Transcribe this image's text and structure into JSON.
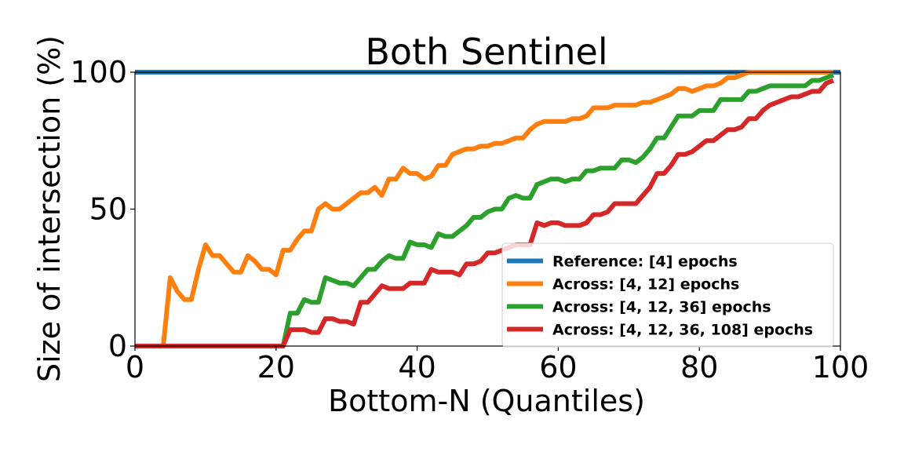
{
  "chart_data": {
    "type": "line",
    "title": "Both Sentinel",
    "xlabel": "Bottom-N (Quantiles)",
    "ylabel": "Size of intersection (%)",
    "xlim": [
      0,
      100
    ],
    "ylim": [
      0,
      100
    ],
    "xticks": [
      "0",
      "20",
      "40",
      "60",
      "80",
      "100"
    ],
    "yticks": [
      "0",
      "50",
      "100"
    ],
    "grid": false,
    "legend_position": "lower-right",
    "series": [
      {
        "name": "Reference: [4] epochs",
        "color": "#1f77b4",
        "x": [
          0,
          100
        ],
        "y": [
          100,
          100
        ]
      },
      {
        "name": "Across: [4, 12] epochs",
        "color": "#ff7f0e",
        "x": [
          0,
          1,
          2,
          3,
          4,
          5,
          6,
          7,
          8,
          9,
          10,
          11,
          12,
          13,
          14,
          15,
          16,
          17,
          18,
          19,
          20,
          21,
          22,
          23,
          24,
          25,
          26,
          27,
          28,
          29,
          30,
          31,
          32,
          33,
          34,
          35,
          36,
          37,
          38,
          39,
          40,
          41,
          42,
          43,
          44,
          45,
          46,
          47,
          48,
          49,
          50,
          51,
          52,
          53,
          54,
          55,
          56,
          57,
          58,
          59,
          60,
          61,
          62,
          63,
          64,
          65,
          66,
          67,
          68,
          69,
          70,
          71,
          72,
          73,
          74,
          75,
          76,
          77,
          78,
          79,
          80,
          81,
          82,
          83,
          84,
          85,
          86,
          87,
          88,
          89,
          90,
          91,
          92,
          93,
          94,
          95,
          96,
          97,
          98,
          99
        ],
        "y": [
          0,
          0,
          0,
          0,
          0,
          25,
          20,
          17,
          17,
          28,
          37,
          33,
          33,
          30,
          27,
          27,
          33,
          31,
          28,
          28,
          26,
          35,
          35,
          39,
          42,
          42,
          50,
          52,
          50,
          50,
          52,
          54,
          56,
          56,
          58,
          55,
          61,
          61,
          65,
          63,
          63,
          61,
          62,
          66,
          66,
          70,
          71,
          72,
          72,
          73,
          73,
          74,
          74,
          75,
          76,
          76,
          79,
          81,
          82,
          82,
          82,
          82,
          83,
          83,
          84,
          87,
          87,
          87,
          88,
          88,
          88,
          88,
          89,
          89,
          90,
          91,
          92,
          94,
          94,
          93,
          94,
          95,
          95,
          96,
          98,
          98,
          99,
          100,
          100,
          100,
          100,
          100,
          100,
          100,
          100,
          100,
          100,
          100,
          100,
          100
        ]
      },
      {
        "name": "Across: [4, 12, 36] epochs",
        "color": "#2ca02c",
        "x": [
          0,
          1,
          2,
          3,
          4,
          5,
          6,
          7,
          8,
          9,
          10,
          11,
          12,
          13,
          14,
          15,
          16,
          17,
          18,
          19,
          20,
          21,
          22,
          23,
          24,
          25,
          26,
          27,
          28,
          29,
          30,
          31,
          32,
          33,
          34,
          35,
          36,
          37,
          38,
          39,
          40,
          41,
          42,
          43,
          44,
          45,
          46,
          47,
          48,
          49,
          50,
          51,
          52,
          53,
          54,
          55,
          56,
          57,
          58,
          59,
          60,
          61,
          62,
          63,
          64,
          65,
          66,
          67,
          68,
          69,
          70,
          71,
          72,
          73,
          74,
          75,
          76,
          77,
          78,
          79,
          80,
          81,
          82,
          83,
          84,
          85,
          86,
          87,
          88,
          89,
          90,
          91,
          92,
          93,
          94,
          95,
          96,
          97,
          98,
          99
        ],
        "y": [
          0,
          0,
          0,
          0,
          0,
          0,
          0,
          0,
          0,
          0,
          0,
          0,
          0,
          0,
          0,
          0,
          0,
          0,
          0,
          0,
          0,
          0,
          12,
          12,
          17,
          16,
          16,
          25,
          24,
          23,
          23,
          22,
          25,
          28,
          28,
          31,
          33,
          32,
          32,
          38,
          37,
          37,
          36,
          41,
          40,
          40,
          42,
          44,
          47,
          47,
          49,
          50,
          50,
          54,
          55,
          54,
          54,
          59,
          60,
          61,
          61,
          60,
          61,
          61,
          64,
          64,
          65,
          65,
          65,
          68,
          68,
          67,
          69,
          72,
          76,
          76,
          80,
          84,
          84,
          84,
          86,
          86,
          86,
          90,
          90,
          90,
          90,
          93,
          93,
          94,
          95,
          95,
          95,
          95,
          95,
          95,
          97,
          97,
          98,
          99
        ]
      },
      {
        "name": "Across: [4, 12, 36, 108] epochs",
        "color": "#d62728",
        "x": [
          0,
          1,
          2,
          3,
          4,
          5,
          6,
          7,
          8,
          9,
          10,
          11,
          12,
          13,
          14,
          15,
          16,
          17,
          18,
          19,
          20,
          21,
          22,
          23,
          24,
          25,
          26,
          27,
          28,
          29,
          30,
          31,
          32,
          33,
          34,
          35,
          36,
          37,
          38,
          39,
          40,
          41,
          42,
          43,
          44,
          45,
          46,
          47,
          48,
          49,
          50,
          51,
          52,
          53,
          54,
          55,
          56,
          57,
          58,
          59,
          60,
          61,
          62,
          63,
          64,
          65,
          66,
          67,
          68,
          69,
          70,
          71,
          72,
          73,
          74,
          75,
          76,
          77,
          78,
          79,
          80,
          81,
          82,
          83,
          84,
          85,
          86,
          87,
          88,
          89,
          90,
          91,
          92,
          93,
          94,
          95,
          96,
          97,
          98,
          99
        ],
        "y": [
          0,
          0,
          0,
          0,
          0,
          0,
          0,
          0,
          0,
          0,
          0,
          0,
          0,
          0,
          0,
          0,
          0,
          0,
          0,
          0,
          0,
          0,
          6,
          6,
          6,
          5,
          5,
          10,
          10,
          9,
          9,
          8,
          16,
          16,
          19,
          22,
          21,
          21,
          21,
          23,
          23,
          23,
          28,
          27,
          27,
          27,
          26,
          30,
          30,
          31,
          34,
          34,
          35,
          36,
          37,
          37,
          37,
          45,
          44,
          45,
          45,
          44,
          44,
          44,
          45,
          48,
          48,
          49,
          52,
          52,
          52,
          52,
          55,
          58,
          63,
          63,
          66,
          70,
          70,
          71,
          73,
          75,
          75,
          77,
          79,
          79,
          80,
          83,
          83,
          86,
          88,
          89,
          90,
          91,
          91,
          92,
          93,
          93,
          96,
          97
        ]
      }
    ]
  }
}
